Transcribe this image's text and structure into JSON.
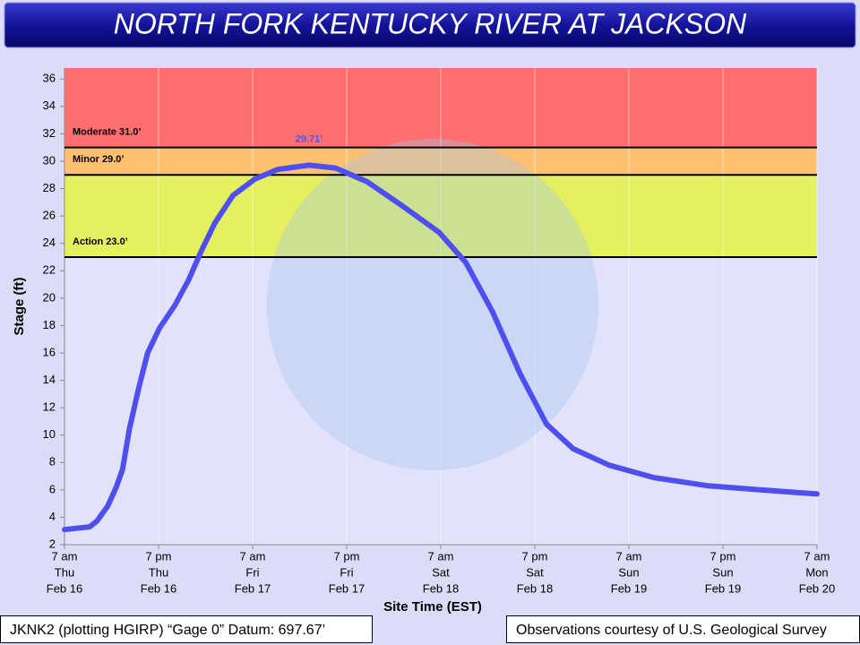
{
  "chart_data": {
    "type": "line",
    "title": "NORTH FORK KENTUCKY RIVER AT JACKSON",
    "y_label": "Stage (ft)",
    "x_label": "Site Time (EST)",
    "ylim": [
      2,
      36.8
    ],
    "yticks": [
      2,
      4,
      6,
      8,
      10,
      12,
      14,
      16,
      18,
      20,
      22,
      24,
      26,
      28,
      30,
      32,
      34,
      36
    ],
    "xlim": [
      0,
      96
    ],
    "xticks": [
      {
        "value": 0,
        "label": [
          "7 am",
          "Thu",
          "Feb 16"
        ]
      },
      {
        "value": 12,
        "label": [
          "7 pm",
          "Thu",
          "Feb 16"
        ]
      },
      {
        "value": 24,
        "label": [
          "7 am",
          "Fri",
          "Feb 17"
        ]
      },
      {
        "value": 36,
        "label": [
          "7 pm",
          "Fri",
          "Feb 17"
        ]
      },
      {
        "value": 48,
        "label": [
          "7 am",
          "Sat",
          "Feb 18"
        ]
      },
      {
        "value": 60,
        "label": [
          "7 pm",
          "Sat",
          "Feb 18"
        ]
      },
      {
        "value": 72,
        "label": [
          "7 am",
          "Sun",
          "Feb 19"
        ]
      },
      {
        "value": 84,
        "label": [
          "7 pm",
          "Sun",
          "Feb 19"
        ]
      },
      {
        "value": 96,
        "label": [
          "7 am",
          "Mon",
          "Feb 20"
        ]
      }
    ],
    "grid": "x",
    "flood_stages": [
      {
        "value": 23,
        "label": "Action 23.0’",
        "color": "#e4f060"
      },
      {
        "value": 29,
        "label": "Minor 29.0’",
        "color": "#ffc070"
      },
      {
        "value": 31,
        "label": "Moderate 31.0’",
        "color": "#ff6f6f"
      }
    ],
    "peak_label": "29.71’",
    "series": [
      {
        "color": "#4f4ff0",
        "x": [
          0,
          3.2,
          4.1,
          5.5,
          6.6,
          7.4,
          8.3,
          9.5,
          10.6,
          12.1,
          14.1,
          15.8,
          17.5,
          19.2,
          21.5,
          24.3,
          27.2,
          31.2,
          34.6,
          38.6,
          43.2,
          47.8,
          51.2,
          54.6,
          58.1,
          61.5,
          64.9,
          69.5,
          75.2,
          82.1,
          88.9,
          96
        ],
        "values": [
          3.1,
          3.3,
          3.7,
          4.8,
          6.2,
          7.5,
          10.5,
          13.5,
          16,
          17.8,
          19.5,
          21.3,
          23.5,
          25.5,
          27.5,
          28.7,
          29.4,
          29.71,
          29.5,
          28.5,
          26.7,
          24.8,
          22.6,
          19,
          14.5,
          10.8,
          9.0,
          7.8,
          6.9,
          6.3,
          6.0,
          5.7
        ]
      }
    ]
  },
  "footer": {
    "left": "JKNK2 (plotting HGIRP) “Gage 0” Datum: 697.67’",
    "right": "Observations courtesy of U.S. Geological Survey"
  }
}
